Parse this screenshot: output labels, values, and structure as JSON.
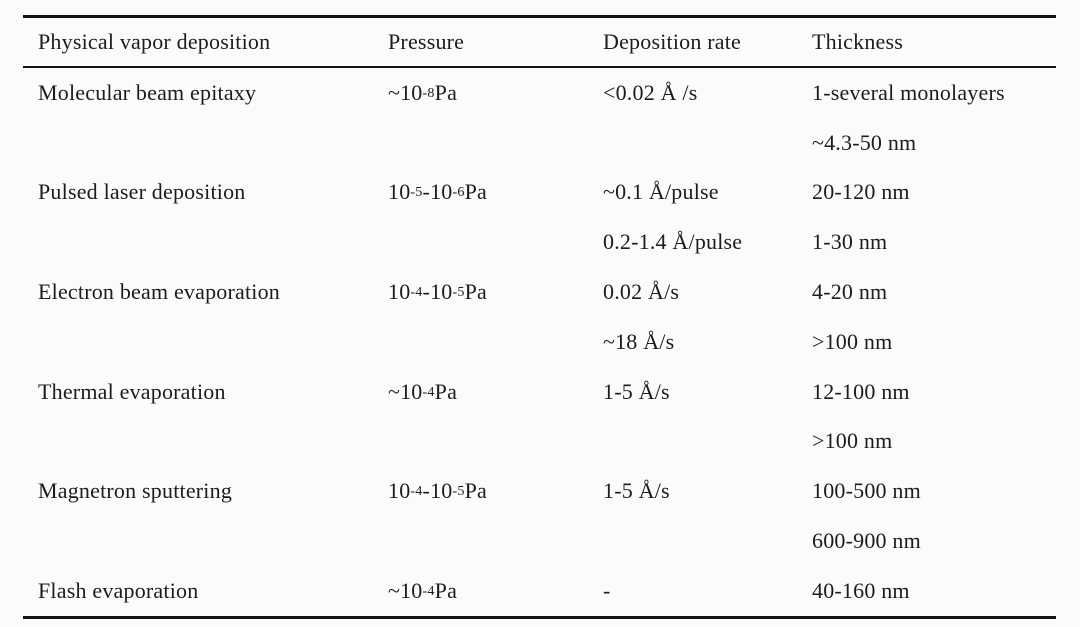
{
  "table": {
    "columns": [
      "Physical vapor deposition",
      "Pressure",
      "Deposition rate",
      "Thickness"
    ],
    "rows": [
      {
        "method": "Molecular beam epitaxy",
        "pressure": "~10^{-8} Pa",
        "rate": [
          "<0.02 Å /s"
        ],
        "thickness": [
          "1-several monolayers",
          "~4.3-50 nm"
        ]
      },
      {
        "method": "Pulsed laser deposition",
        "pressure": "10^{-5}-10^{-6} Pa",
        "rate": [
          "~0.1 Å/pulse",
          "0.2-1.4 Å/pulse"
        ],
        "thickness": [
          "20-120 nm",
          "1-30 nm"
        ]
      },
      {
        "method": "Electron beam evaporation",
        "pressure": "10^{-4}-10^{-5} Pa",
        "rate": [
          "0.02 Å/s",
          "~18 Å/s"
        ],
        "thickness": [
          "4-20 nm",
          ">100 nm"
        ]
      },
      {
        "method": "Thermal evaporation",
        "pressure": "~10^{-4} Pa",
        "rate": [
          "1-5 Å/s"
        ],
        "thickness": [
          "12-100 nm",
          ">100 nm"
        ]
      },
      {
        "method": "Magnetron sputtering",
        "pressure": "10^{-4}-10^{-5} Pa",
        "rate": [
          "1-5 Å/s"
        ],
        "thickness": [
          "100-500 nm",
          "600-900 nm"
        ]
      },
      {
        "method": "Flash evaporation",
        "pressure": "~10^{-4} Pa",
        "rate": [
          "-"
        ],
        "thickness": [
          "40-160 nm"
        ]
      }
    ]
  },
  "colors": {
    "background": "#fbfbfb",
    "text": "#1c1c1c",
    "rule": "#141414"
  }
}
